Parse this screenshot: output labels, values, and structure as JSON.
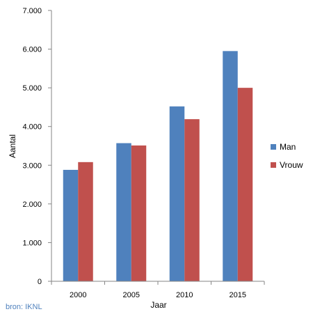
{
  "chart_data": {
    "type": "bar",
    "categories": [
      "2000",
      "2005",
      "2010",
      "2015"
    ],
    "series": [
      {
        "name": "Man",
        "values": [
          2880,
          3570,
          4520,
          5950
        ],
        "color": "#4f81bd"
      },
      {
        "name": "Vrouw",
        "values": [
          3080,
          3510,
          4190,
          5000
        ],
        "color": "#c0504d"
      }
    ],
    "xlabel": "Jaar",
    "ylabel": "Aantal",
    "ylim": [
      0,
      7000
    ],
    "yticks": [
      0,
      1000,
      2000,
      3000,
      4000,
      5000,
      6000,
      7000
    ],
    "ytick_labels": [
      "0",
      "1.000",
      "2.000",
      "3.000",
      "4.000",
      "5.000",
      "6.000",
      "7.000"
    ],
    "grid": false,
    "legend_position": "right"
  },
  "source_note": "bron: IKNL"
}
